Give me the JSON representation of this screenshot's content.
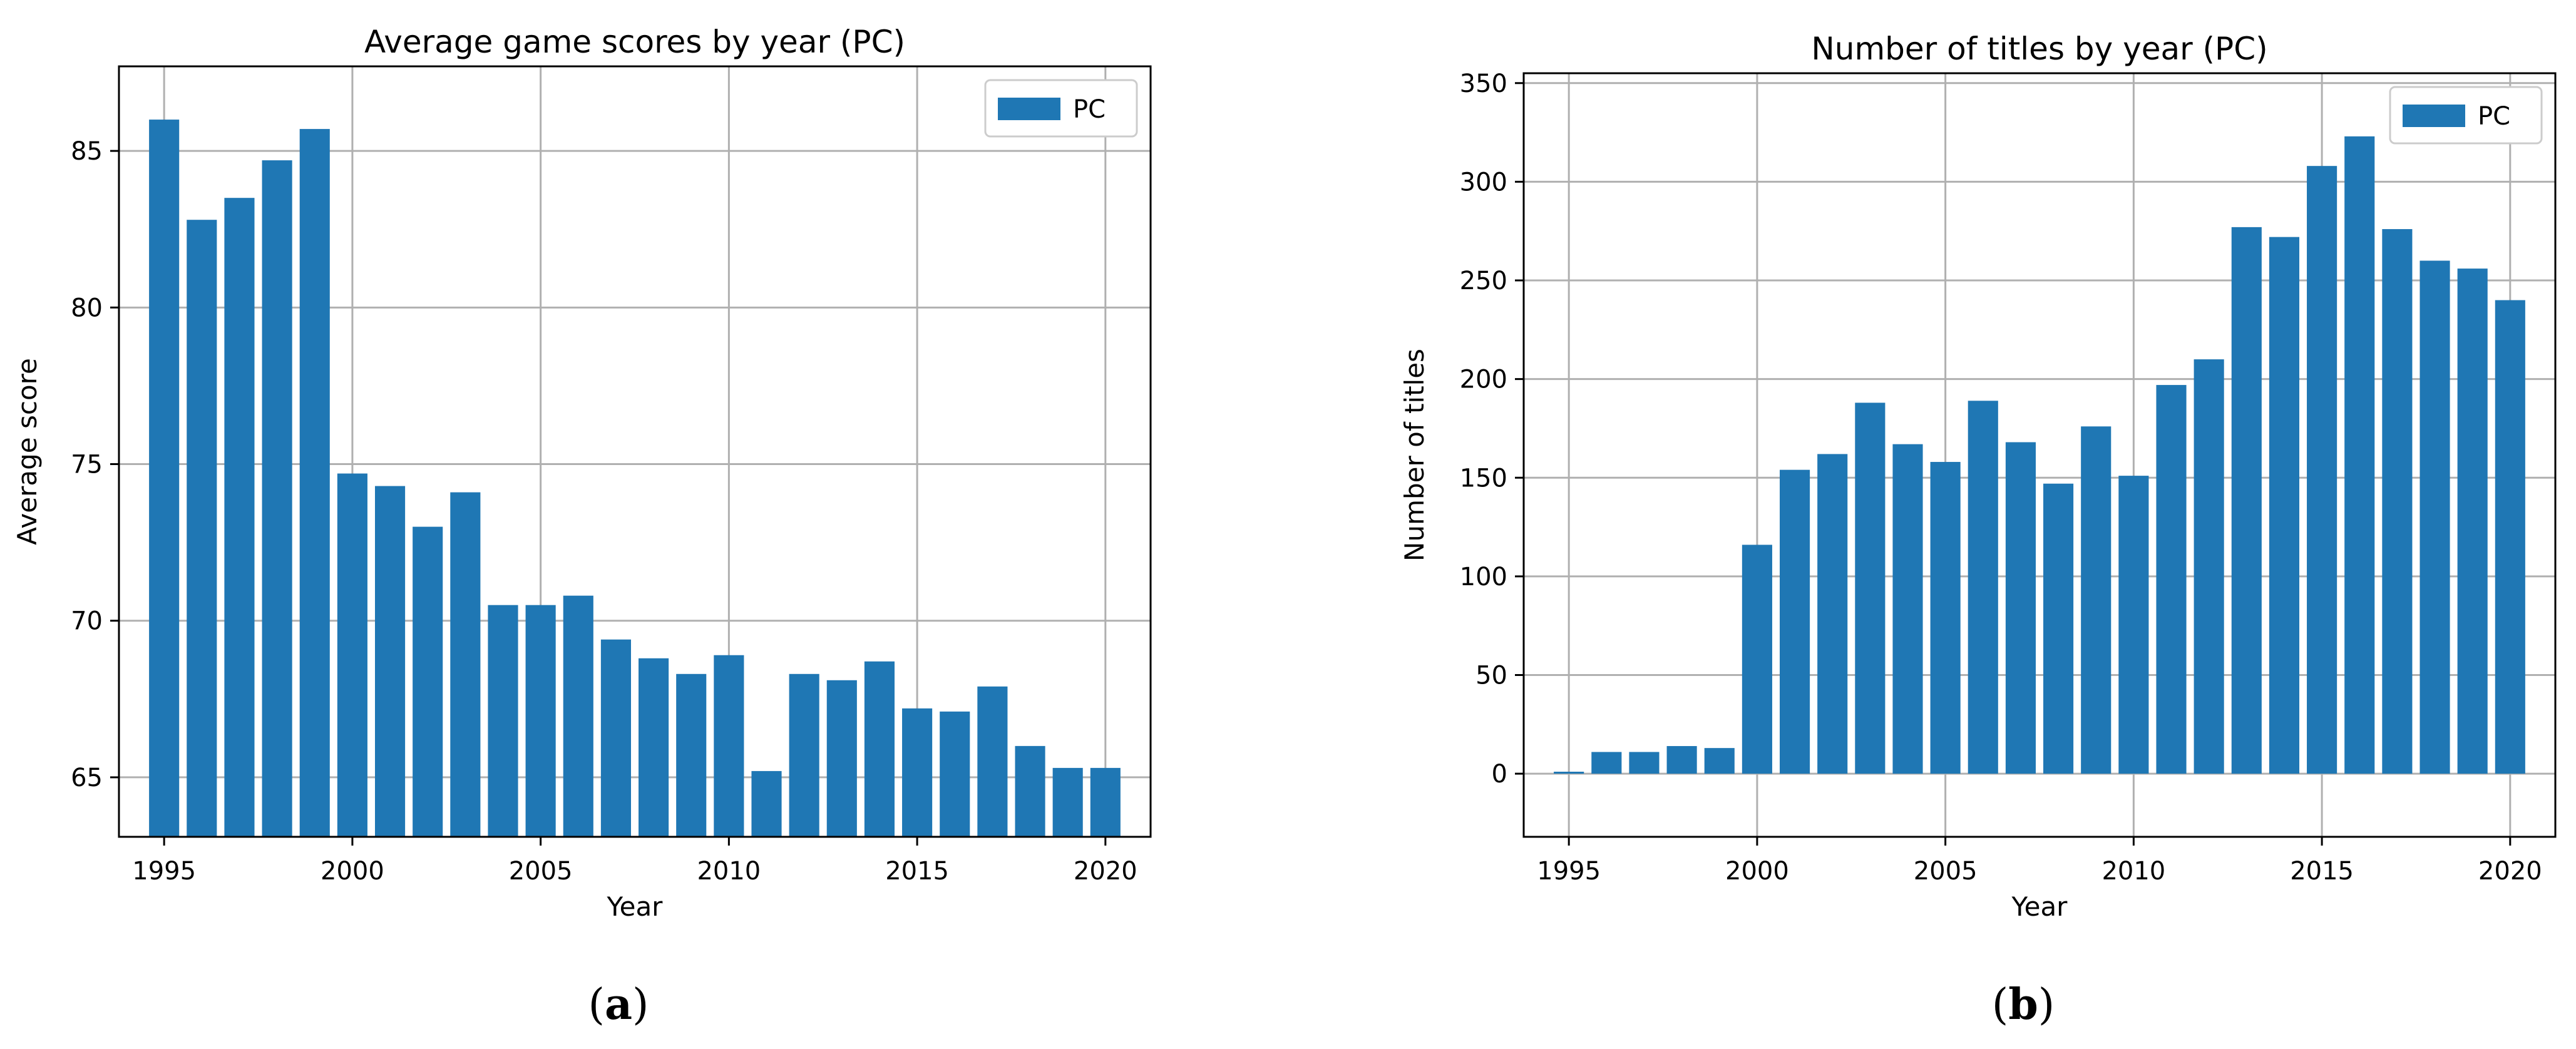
{
  "chart_data": [
    {
      "type": "bar",
      "title": "Average game scores by year (PC)",
      "xlabel": "Year",
      "ylabel": "Average score",
      "x": [
        1995,
        1996,
        1997,
        1998,
        1999,
        2000,
        2001,
        2002,
        2003,
        2004,
        2005,
        2006,
        2007,
        2008,
        2009,
        2010,
        2011,
        2012,
        2013,
        2014,
        2015,
        2016,
        2017,
        2018,
        2019,
        2020
      ],
      "series": [
        {
          "name": "PC",
          "values": [
            86.0,
            82.8,
            83.5,
            84.7,
            85.7,
            74.7,
            74.3,
            73.0,
            74.1,
            70.5,
            70.5,
            70.8,
            69.4,
            68.8,
            68.3,
            68.9,
            65.2,
            68.3,
            68.1,
            68.7,
            67.2,
            67.1,
            67.9,
            66.0,
            65.3,
            65.3
          ]
        }
      ],
      "xlim": [
        1993.8,
        2021.2
      ],
      "ylim": [
        63.1,
        87.7
      ],
      "xticks": [
        1995,
        2000,
        2005,
        2010,
        2015,
        2020
      ],
      "yticks": [
        65,
        70,
        75,
        80,
        85
      ],
      "grid": true,
      "legend": "top-right",
      "color": "#1f77b4",
      "panel_label": {
        "open": "(",
        "letter": "a",
        "close": ")"
      }
    },
    {
      "type": "bar",
      "title": "Number of titles by year (PC)",
      "xlabel": "Year",
      "ylabel": "Number of titles",
      "x": [
        1995,
        1996,
        1997,
        1998,
        1999,
        2000,
        2001,
        2002,
        2003,
        2004,
        2005,
        2006,
        2007,
        2008,
        2009,
        2010,
        2011,
        2012,
        2013,
        2014,
        2015,
        2016,
        2017,
        2018,
        2019,
        2020
      ],
      "series": [
        {
          "name": "PC",
          "values": [
            1,
            11,
            11,
            14,
            13,
            116,
            154,
            162,
            188,
            167,
            158,
            189,
            168,
            147,
            176,
            151,
            197,
            210,
            277,
            272,
            308,
            323,
            276,
            260,
            256,
            240
          ]
        }
      ],
      "xlim": [
        1993.8,
        2021.2
      ],
      "ylim": [
        -32,
        355
      ],
      "xticks": [
        1995,
        2000,
        2005,
        2010,
        2015,
        2020
      ],
      "yticks": [
        0,
        50,
        100,
        150,
        200,
        250,
        300,
        350
      ],
      "grid": true,
      "legend": "top-right",
      "color": "#1f77b4",
      "panel_label": {
        "open": "(",
        "letter": "b",
        "close": ")"
      }
    }
  ]
}
